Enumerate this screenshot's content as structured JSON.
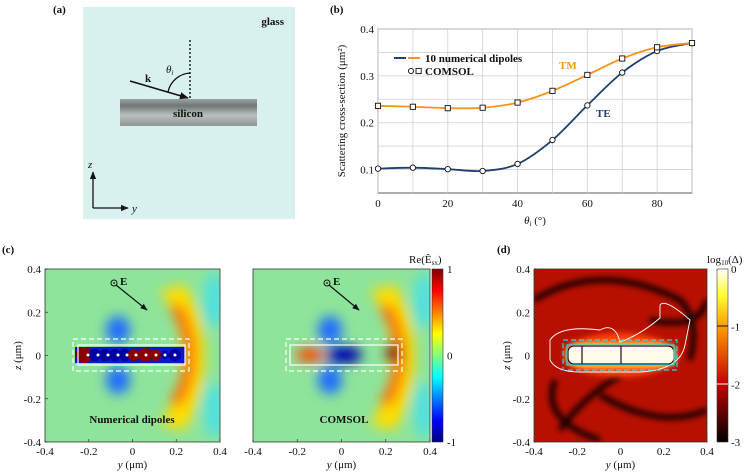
{
  "panel_a": {
    "label": "(a)",
    "medium": "glass",
    "particle": "silicon",
    "wavevector": "k",
    "angle": "θ",
    "angle_sub": "i",
    "axis_z": "z",
    "axis_y": "y",
    "background_color": "#d8f1ee"
  },
  "panel_b": {
    "label": "(b)",
    "legend": [
      "10 numerical dipoles",
      "COMSOL"
    ],
    "annotations": {
      "tm": "TM",
      "te": "TE"
    }
  },
  "chart_data": [
    {
      "type": "line",
      "xlabel": "θi (°)",
      "xlabel_main": "θ",
      "xlabel_sub": "i",
      "xlabel_unit": " (°)",
      "ylabel": "Scattering cross-section (μm²)",
      "xlim": [
        0,
        90
      ],
      "ylim": [
        0.05,
        0.4
      ],
      "xticks": [
        0,
        20,
        40,
        60,
        80
      ],
      "yticks": [
        0.1,
        0.2,
        0.3,
        0.4
      ],
      "ytick_labels": [
        "0.1",
        "0.2",
        "0.3",
        "0.4"
      ],
      "grid": true,
      "legend_placement": "top-left",
      "x": [
        0,
        10,
        20,
        30,
        40,
        50,
        60,
        70,
        80,
        90
      ],
      "series": [
        {
          "name": "TE",
          "color": "#1f3f73",
          "marker": "circle",
          "values": [
            0.102,
            0.104,
            0.101,
            0.097,
            0.112,
            0.163,
            0.237,
            0.307,
            0.353,
            0.37
          ]
        },
        {
          "name": "TM",
          "color": "#f7931e",
          "marker": "square",
          "values": [
            0.236,
            0.234,
            0.231,
            0.232,
            0.243,
            0.268,
            0.302,
            0.337,
            0.361,
            0.37
          ]
        }
      ]
    }
  ],
  "panel_c": {
    "label": "(c)",
    "left_title": "Numerical dipoles",
    "right_title": "COMSOL",
    "field_label": "E",
    "xlabel": "y (μm)",
    "ylabel": "z (μm)",
    "ticks": [
      "-0.4",
      "-0.2",
      "0",
      "0.2",
      "0.4"
    ],
    "colorbar_title": "Re(Ê",
    "colorbar_sub": "sx",
    "colorbar_ticks": [
      "1",
      "0",
      "-1"
    ]
  },
  "panel_d": {
    "label": "(d)",
    "xlabel": "y (μm)",
    "ylabel": "z (μm)",
    "ticks": [
      "-0.4",
      "-0.2",
      "0",
      "0.2",
      "0.4"
    ],
    "colorbar_title": "log",
    "colorbar_sub": "10",
    "colorbar_title_end": "(Δ)",
    "colorbar_ticks": [
      "0",
      "-1",
      "-2",
      "-3"
    ]
  }
}
